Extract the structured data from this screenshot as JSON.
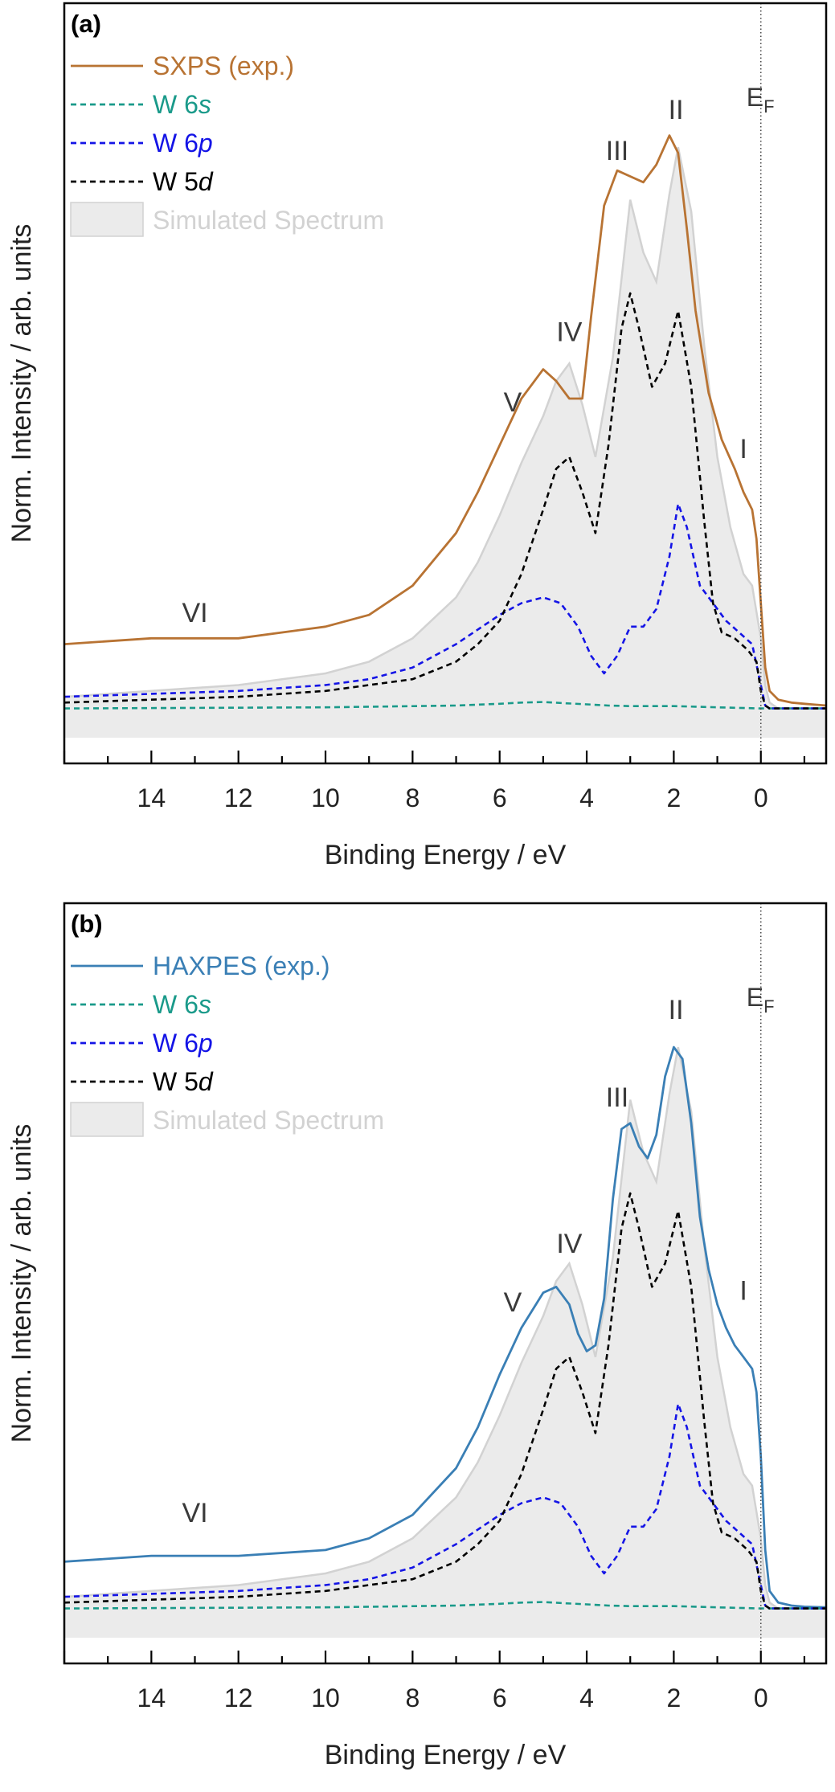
{
  "colors": {
    "sxps": "#b87333",
    "haxpes": "#3a7fb5",
    "s6": "#1a9a8a",
    "p6": "#1414e6",
    "d5": "#000000",
    "sim_fill": "#ebebeb",
    "sim_line": "#d2d2d2",
    "text": "#3a3a3a"
  },
  "chart_data": [
    {
      "type": "line",
      "panel_label": "(a)",
      "xlabel": "Binding Energy / eV",
      "ylabel": "Norm. Intensity / arb. units",
      "xlim": [
        16,
        -1.5
      ],
      "ylim": [
        -0.05,
        1.0
      ],
      "x_ticks": [
        14,
        12,
        10,
        8,
        6,
        4,
        2,
        0
      ],
      "x_tick_labels": [
        "14",
        "12",
        "10",
        "8",
        "6",
        "4",
        "2",
        "0"
      ],
      "fermi_label": {
        "main": "E",
        "sub": "F",
        "x": 0
      },
      "legend": [
        {
          "label": "SXPS (exp.)",
          "style": "solid",
          "color_key": "sxps",
          "parts": [
            {
              "t": "SXPS (exp.)",
              "i": false
            }
          ]
        },
        {
          "label": "W 6s",
          "style": "dashed",
          "color_key": "s6",
          "parts": [
            {
              "t": "W 6",
              "i": false
            },
            {
              "t": "s",
              "i": true
            }
          ]
        },
        {
          "label": "W 6p",
          "style": "dashed",
          "color_key": "p6",
          "parts": [
            {
              "t": "W 6",
              "i": false
            },
            {
              "t": "p",
              "i": true
            }
          ]
        },
        {
          "label": "W 5d",
          "style": "dashed",
          "color_key": "d5",
          "parts": [
            {
              "t": "W 5",
              "i": false
            },
            {
              "t": "d",
              "i": true
            }
          ]
        },
        {
          "label": "Simulated Spectrum",
          "style": "area",
          "color_key": "sim_line",
          "parts": [
            {
              "t": "Simulated Spectrum",
              "i": false
            }
          ]
        }
      ],
      "annotations": [
        {
          "text": "I",
          "x": 0.4,
          "y": 0.42
        },
        {
          "text": "II",
          "x": 1.95,
          "y": 1.0
        },
        {
          "text": "III",
          "x": 3.3,
          "y": 0.93
        },
        {
          "text": "IV",
          "x": 4.4,
          "y": 0.62
        },
        {
          "text": "V",
          "x": 5.7,
          "y": 0.5
        },
        {
          "text": "VI",
          "x": 13.0,
          "y": 0.14
        }
      ],
      "series": [
        {
          "name": "Simulated Spectrum",
          "kind": "area",
          "color_key": "sim_line",
          "x": [
            16,
            14,
            12,
            10,
            9,
            8,
            7,
            6.5,
            6,
            5.5,
            5,
            4.7,
            4.4,
            4.1,
            3.8,
            3.4,
            3.0,
            2.7,
            2.4,
            2.1,
            1.9,
            1.6,
            1.3,
            1.0,
            0.7,
            0.4,
            0.2,
            0,
            -0.1,
            -0.2,
            -0.4,
            -1.5
          ],
          "y": [
            0.02,
            0.03,
            0.04,
            0.06,
            0.08,
            0.12,
            0.19,
            0.25,
            0.33,
            0.42,
            0.5,
            0.56,
            0.59,
            0.52,
            0.43,
            0.6,
            0.87,
            0.78,
            0.73,
            0.88,
            0.96,
            0.85,
            0.62,
            0.43,
            0.31,
            0.23,
            0.21,
            0.12,
            0.04,
            0.01,
            0.0,
            0.0
          ]
        },
        {
          "name": "SXPS (exp.)",
          "kind": "line",
          "color_key": "sxps",
          "x": [
            16,
            14,
            12,
            10,
            9,
            8,
            7,
            6.5,
            6,
            5.5,
            5.0,
            4.7,
            4.4,
            4.1,
            3.9,
            3.6,
            3.3,
            3.0,
            2.7,
            2.4,
            2.1,
            1.9,
            1.7,
            1.5,
            1.2,
            0.9,
            0.6,
            0.4,
            0.2,
            0.1,
            0,
            -0.1,
            -0.2,
            -0.4,
            -0.7,
            -1.0,
            -1.5
          ],
          "y": [
            0.11,
            0.12,
            0.12,
            0.14,
            0.16,
            0.21,
            0.3,
            0.37,
            0.45,
            0.53,
            0.58,
            0.56,
            0.53,
            0.53,
            0.67,
            0.86,
            0.92,
            0.91,
            0.9,
            0.93,
            0.98,
            0.95,
            0.82,
            0.68,
            0.54,
            0.46,
            0.41,
            0.37,
            0.34,
            0.29,
            0.18,
            0.07,
            0.03,
            0.015,
            0.01,
            0.008,
            0.005
          ]
        },
        {
          "name": "W 6s",
          "kind": "line",
          "style": "dashed",
          "color_key": "s6",
          "x": [
            16,
            10,
            7,
            6,
            5.5,
            5.0,
            4.5,
            4.0,
            3.5,
            3.0,
            2.5,
            2.0,
            1.5,
            1.0,
            0.5,
            0,
            -0.2,
            -1.5
          ],
          "y": [
            0.0,
            0.002,
            0.005,
            0.008,
            0.01,
            0.011,
            0.009,
            0.007,
            0.005,
            0.004,
            0.004,
            0.004,
            0.003,
            0.002,
            0.001,
            0.0,
            0.0,
            0.0
          ]
        },
        {
          "name": "W 6p",
          "kind": "line",
          "style": "dashed",
          "color_key": "p6",
          "x": [
            16,
            12,
            10,
            9,
            8,
            7,
            6,
            5.5,
            5.0,
            4.6,
            4.2,
            3.9,
            3.6,
            3.3,
            3.0,
            2.7,
            2.4,
            2.1,
            1.9,
            1.7,
            1.4,
            1.1,
            0.8,
            0.5,
            0.2,
            0,
            -0.1,
            -0.2,
            -0.4,
            -1.5
          ],
          "y": [
            0.02,
            0.03,
            0.04,
            0.05,
            0.07,
            0.11,
            0.16,
            0.18,
            0.19,
            0.18,
            0.14,
            0.09,
            0.06,
            0.09,
            0.14,
            0.14,
            0.17,
            0.26,
            0.35,
            0.31,
            0.21,
            0.18,
            0.15,
            0.13,
            0.11,
            0.04,
            0.005,
            0.0,
            0.0,
            0.0
          ]
        },
        {
          "name": "W 5d",
          "kind": "line",
          "style": "dashed",
          "color_key": "d5",
          "x": [
            16,
            12,
            10,
            9,
            8,
            7,
            6.5,
            6,
            5.5,
            5.0,
            4.7,
            4.4,
            4.1,
            3.8,
            3.5,
            3.2,
            3.0,
            2.8,
            2.5,
            2.2,
            1.9,
            1.6,
            1.3,
            1.1,
            0.9,
            0.6,
            0.3,
            0.1,
            0,
            -0.1,
            -0.2,
            -0.4,
            -1.5
          ],
          "y": [
            0.01,
            0.02,
            0.03,
            0.04,
            0.05,
            0.08,
            0.11,
            0.15,
            0.23,
            0.34,
            0.41,
            0.43,
            0.37,
            0.3,
            0.45,
            0.65,
            0.71,
            0.65,
            0.55,
            0.59,
            0.68,
            0.55,
            0.32,
            0.18,
            0.13,
            0.12,
            0.1,
            0.08,
            0.03,
            0.005,
            0.0,
            0.0,
            0.0
          ]
        }
      ]
    },
    {
      "type": "line",
      "panel_label": "(b)",
      "xlabel": "Binding Energy / eV",
      "ylabel": "Norm. Intensity / arb. units",
      "xlim": [
        16,
        -1.5
      ],
      "ylim": [
        -0.05,
        1.0
      ],
      "x_ticks": [
        14,
        12,
        10,
        8,
        6,
        4,
        2,
        0
      ],
      "x_tick_labels": [
        "14",
        "12",
        "10",
        "8",
        "6",
        "4",
        "2",
        "0"
      ],
      "fermi_label": {
        "main": "E",
        "sub": "F",
        "x": 0
      },
      "legend": [
        {
          "label": "HAXPES (exp.)",
          "style": "solid",
          "color_key": "haxpes",
          "parts": [
            {
              "t": "HAXPES (exp.)",
              "i": false
            }
          ]
        },
        {
          "label": "W 6s",
          "style": "dashed",
          "color_key": "s6",
          "parts": [
            {
              "t": "W 6",
              "i": false
            },
            {
              "t": "s",
              "i": true
            }
          ]
        },
        {
          "label": "W 6p",
          "style": "dashed",
          "color_key": "p6",
          "parts": [
            {
              "t": "W 6",
              "i": false
            },
            {
              "t": "p",
              "i": true
            }
          ]
        },
        {
          "label": "W 5d",
          "style": "dashed",
          "color_key": "d5",
          "parts": [
            {
              "t": "W 5",
              "i": false
            },
            {
              "t": "d",
              "i": true
            }
          ]
        },
        {
          "label": "Simulated Spectrum",
          "style": "area",
          "color_key": "sim_line",
          "parts": [
            {
              "t": "Simulated Spectrum",
              "i": false
            }
          ]
        }
      ],
      "annotations": [
        {
          "text": "I",
          "x": 0.4,
          "y": 0.52
        },
        {
          "text": "II",
          "x": 1.95,
          "y": 1.0
        },
        {
          "text": "III",
          "x": 3.3,
          "y": 0.85
        },
        {
          "text": "IV",
          "x": 4.4,
          "y": 0.6
        },
        {
          "text": "V",
          "x": 5.7,
          "y": 0.5
        },
        {
          "text": "VI",
          "x": 13.0,
          "y": 0.14
        }
      ],
      "series": [
        {
          "name": "Simulated Spectrum",
          "kind": "area",
          "color_key": "sim_line",
          "x": [
            16,
            14,
            12,
            10,
            9,
            8,
            7,
            6.5,
            6,
            5.5,
            5,
            4.7,
            4.4,
            4.1,
            3.8,
            3.4,
            3.0,
            2.7,
            2.4,
            2.1,
            1.9,
            1.6,
            1.3,
            1.0,
            0.7,
            0.4,
            0.2,
            0,
            -0.1,
            -0.2,
            -0.4,
            -1.5
          ],
          "y": [
            0.02,
            0.03,
            0.04,
            0.06,
            0.08,
            0.12,
            0.19,
            0.25,
            0.33,
            0.42,
            0.5,
            0.56,
            0.59,
            0.52,
            0.43,
            0.6,
            0.87,
            0.78,
            0.73,
            0.88,
            0.96,
            0.85,
            0.62,
            0.43,
            0.31,
            0.23,
            0.21,
            0.12,
            0.04,
            0.01,
            0.0,
            0.0
          ]
        },
        {
          "name": "HAXPES (exp.)",
          "kind": "line",
          "color_key": "haxpes",
          "x": [
            16,
            14,
            12,
            10,
            9,
            8,
            7,
            6.5,
            6,
            5.5,
            5.0,
            4.7,
            4.4,
            4.2,
            4.0,
            3.8,
            3.6,
            3.4,
            3.2,
            3.0,
            2.8,
            2.6,
            2.4,
            2.2,
            2.0,
            1.8,
            1.6,
            1.4,
            1.2,
            1.0,
            0.8,
            0.6,
            0.4,
            0.2,
            0.1,
            0,
            -0.1,
            -0.2,
            -0.4,
            -0.7,
            -1.0,
            -1.5
          ],
          "y": [
            0.08,
            0.09,
            0.09,
            0.1,
            0.12,
            0.16,
            0.24,
            0.31,
            0.4,
            0.48,
            0.54,
            0.55,
            0.52,
            0.47,
            0.44,
            0.45,
            0.53,
            0.7,
            0.82,
            0.83,
            0.79,
            0.77,
            0.81,
            0.91,
            0.96,
            0.94,
            0.83,
            0.67,
            0.58,
            0.52,
            0.48,
            0.45,
            0.43,
            0.41,
            0.37,
            0.26,
            0.1,
            0.03,
            0.01,
            0.005,
            0.003,
            0.002
          ]
        },
        {
          "name": "W 6s",
          "kind": "line",
          "style": "dashed",
          "color_key": "s6",
          "x": [
            16,
            10,
            7,
            6,
            5.5,
            5.0,
            4.5,
            4.0,
            3.5,
            3.0,
            2.5,
            2.0,
            1.5,
            1.0,
            0.5,
            0,
            -0.2,
            -1.5
          ],
          "y": [
            0.0,
            0.002,
            0.005,
            0.008,
            0.01,
            0.011,
            0.009,
            0.007,
            0.005,
            0.004,
            0.004,
            0.004,
            0.003,
            0.002,
            0.001,
            0.0,
            0.0,
            0.0
          ]
        },
        {
          "name": "W 6p",
          "kind": "line",
          "style": "dashed",
          "color_key": "p6",
          "x": [
            16,
            12,
            10,
            9,
            8,
            7,
            6,
            5.5,
            5.0,
            4.6,
            4.2,
            3.9,
            3.6,
            3.3,
            3.0,
            2.7,
            2.4,
            2.1,
            1.9,
            1.7,
            1.4,
            1.1,
            0.8,
            0.5,
            0.2,
            0,
            -0.1,
            -0.2,
            -0.4,
            -1.5
          ],
          "y": [
            0.02,
            0.03,
            0.04,
            0.05,
            0.07,
            0.11,
            0.16,
            0.18,
            0.19,
            0.18,
            0.14,
            0.09,
            0.06,
            0.09,
            0.14,
            0.14,
            0.17,
            0.26,
            0.35,
            0.31,
            0.21,
            0.18,
            0.15,
            0.13,
            0.11,
            0.04,
            0.005,
            0.0,
            0.0,
            0.0
          ]
        },
        {
          "name": "W 5d",
          "kind": "line",
          "style": "dashed",
          "color_key": "d5",
          "x": [
            16,
            12,
            10,
            9,
            8,
            7,
            6.5,
            6,
            5.5,
            5.0,
            4.7,
            4.4,
            4.1,
            3.8,
            3.5,
            3.2,
            3.0,
            2.8,
            2.5,
            2.2,
            1.9,
            1.6,
            1.3,
            1.1,
            0.9,
            0.6,
            0.3,
            0.1,
            0,
            -0.1,
            -0.2,
            -0.4,
            -1.5
          ],
          "y": [
            0.01,
            0.02,
            0.03,
            0.04,
            0.05,
            0.08,
            0.11,
            0.15,
            0.23,
            0.34,
            0.41,
            0.43,
            0.37,
            0.3,
            0.45,
            0.65,
            0.71,
            0.65,
            0.55,
            0.59,
            0.68,
            0.55,
            0.32,
            0.18,
            0.13,
            0.12,
            0.1,
            0.08,
            0.03,
            0.005,
            0.0,
            0.0,
            0.0
          ]
        }
      ]
    }
  ]
}
